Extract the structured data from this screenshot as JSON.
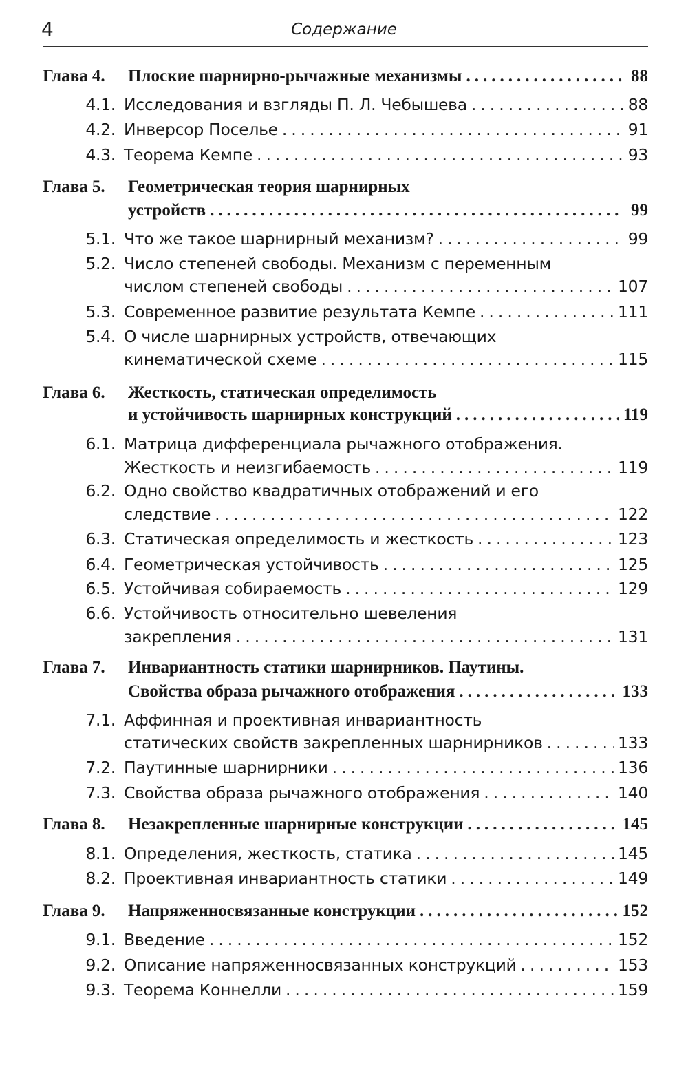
{
  "header": {
    "page_number": "4",
    "title": "Содержание"
  },
  "entries": [
    {
      "type": "chapter",
      "label": "Глава 4.",
      "lines": [
        "Плоские шарнирно-рычажные механизмы"
      ],
      "page": "88"
    },
    {
      "type": "section",
      "label": "4.1.",
      "lines": [
        "Исследования и взгляды П. Л. Чебышева"
      ],
      "page": "88"
    },
    {
      "type": "section",
      "label": "4.2.",
      "lines": [
        "Инверсор Поселье"
      ],
      "page": "91"
    },
    {
      "type": "section",
      "label": "4.3.",
      "lines": [
        "Теорема Кемпе"
      ],
      "page": "93"
    },
    {
      "type": "chapter",
      "label": "Глава 5.",
      "lines": [
        "Геометрическая теория шарнирных",
        "устройств"
      ],
      "page": "99"
    },
    {
      "type": "section",
      "label": "5.1.",
      "lines": [
        "Что же такое шарнирный механизм?"
      ],
      "page": "99"
    },
    {
      "type": "section",
      "label": "5.2.",
      "lines": [
        "Число степеней свободы. Механизм с переменным",
        "числом степеней свободы"
      ],
      "page": "107"
    },
    {
      "type": "section",
      "label": "5.3.",
      "lines": [
        "Современное развитие результата Кемпе"
      ],
      "page": "111"
    },
    {
      "type": "section",
      "label": "5.4.",
      "lines": [
        "О числе шарнирных устройств, отвечающих",
        "кинематической схеме"
      ],
      "page": "115"
    },
    {
      "type": "chapter",
      "label": "Глава 6.",
      "lines": [
        "Жесткость, статическая определимость",
        "и устойчивость шарнирных конструкций"
      ],
      "page": "119"
    },
    {
      "type": "section",
      "label": "6.1.",
      "lines": [
        "Матрица дифференциала рычажного отображения.",
        "Жесткость и неизгибаемость"
      ],
      "page": "119"
    },
    {
      "type": "section",
      "label": "6.2.",
      "lines": [
        "Одно свойство квадратичных отображений и его",
        "следствие"
      ],
      "page": "122"
    },
    {
      "type": "section",
      "label": "6.3.",
      "lines": [
        "Статическая определимость и жесткость"
      ],
      "page": "123"
    },
    {
      "type": "section",
      "label": "6.4.",
      "lines": [
        "Геометрическая устойчивость"
      ],
      "page": "125"
    },
    {
      "type": "section",
      "label": "6.5.",
      "lines": [
        "Устойчивая собираемость"
      ],
      "page": "129"
    },
    {
      "type": "section",
      "label": "6.6.",
      "lines": [
        "Устойчивость относительно шевеления",
        "закрепления"
      ],
      "page": "131"
    },
    {
      "type": "chapter",
      "label": "Глава 7.",
      "lines": [
        "Инвариантность статики шарнирников. Паутины.",
        "Свойства образа рычажного отображения"
      ],
      "page": "133"
    },
    {
      "type": "section",
      "label": "7.1.",
      "lines": [
        "Аффинная и проективная инвариантность",
        "статических свойств закрепленных шарнирников"
      ],
      "page": "133"
    },
    {
      "type": "section",
      "label": "7.2.",
      "lines": [
        "Паутинные шарнирники"
      ],
      "page": "136"
    },
    {
      "type": "section",
      "label": "7.3.",
      "lines": [
        "Свойства образа рычажного отображения"
      ],
      "page": "140"
    },
    {
      "type": "chapter",
      "label": "Глава 8.",
      "lines": [
        "Незакрепленные шарнирные конструкции"
      ],
      "page": "145"
    },
    {
      "type": "section",
      "label": "8.1.",
      "lines": [
        "Определения, жесткость, статика"
      ],
      "page": "145"
    },
    {
      "type": "section",
      "label": "8.2.",
      "lines": [
        "Проективная инвариантность статики"
      ],
      "page": "149"
    },
    {
      "type": "chapter",
      "label": "Глава 9.",
      "lines": [
        "Напряженносвязанные конструкции"
      ],
      "page": "152"
    },
    {
      "type": "section",
      "label": "9.1.",
      "lines": [
        "Введение"
      ],
      "page": "152"
    },
    {
      "type": "section",
      "label": "9.2.",
      "lines": [
        "Описание напряженносвязанных конструкций"
      ],
      "page": "153"
    },
    {
      "type": "section",
      "label": "9.3.",
      "lines": [
        "Теорема Коннелли"
      ],
      "page": "159"
    }
  ]
}
